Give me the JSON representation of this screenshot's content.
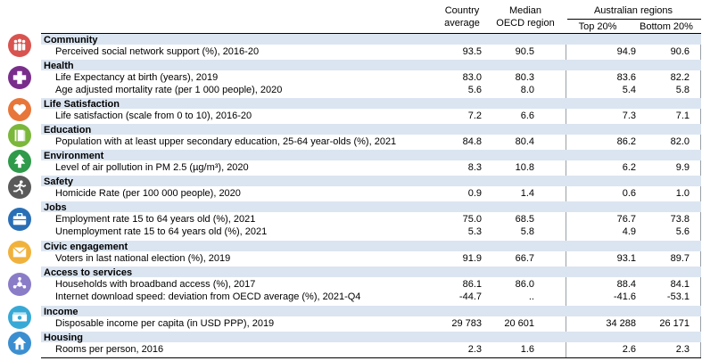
{
  "header": {
    "country_average": [
      "Country",
      "average"
    ],
    "median_oecd": [
      "Median",
      "OECD region"
    ],
    "regions_group": "Australian regions",
    "top20": "Top 20%",
    "bottom20": "Bottom 20%"
  },
  "sections": [
    {
      "title": "Community",
      "icon": "people-icon",
      "color": "#d9534f",
      "rows": [
        {
          "label": "Perceived social network support (%), 2016-20",
          "country": "93.5",
          "median": "90.5",
          "top": "94.9",
          "bottom": "90.6"
        }
      ]
    },
    {
      "title": "Health",
      "icon": "medical-cross-icon",
      "color": "#7a2e8c",
      "rows": [
        {
          "label": "Life Expectancy at birth (years), 2019",
          "country": "83.0",
          "median": "80.3",
          "top": "83.6",
          "bottom": "82.2"
        },
        {
          "label": "Age adjusted mortality rate (per 1 000 people), 2020",
          "country": "5.6",
          "median": "8.0",
          "top": "5.4",
          "bottom": "5.8"
        }
      ]
    },
    {
      "title": "Life Satisfaction",
      "icon": "heart-icon",
      "color": "#e8763a",
      "rows": [
        {
          "label": "Life satisfaction (scale from 0 to 10), 2016-20",
          "country": "7.2",
          "median": "6.6",
          "top": "7.3",
          "bottom": "7.1"
        }
      ]
    },
    {
      "title": "Education",
      "icon": "book-icon",
      "color": "#7bb73a",
      "rows": [
        {
          "label": "Population with at least upper secondary education, 25-64 year-olds  (%), 2021",
          "country": "84.8",
          "median": "80.4",
          "top": "86.2",
          "bottom": "82.0"
        }
      ]
    },
    {
      "title": "Environment",
      "icon": "tree-icon",
      "color": "#2e9a4a",
      "rows": [
        {
          "label": "Level of air pollution in PM 2.5 (µg/m³), 2020",
          "country": "8.3",
          "median": "10.8",
          "top": "6.2",
          "bottom": "9.9"
        }
      ]
    },
    {
      "title": "Safety",
      "icon": "running-person-icon",
      "color": "#5a5a5a",
      "rows": [
        {
          "label": "Homicide Rate (per 100 000 people), 2020",
          "country": "0.9",
          "median": "1.4",
          "top": "0.6",
          "bottom": "1.0"
        }
      ]
    },
    {
      "title": "Jobs",
      "icon": "briefcase-icon",
      "color": "#2a6fb5",
      "rows": [
        {
          "label": "Employment rate 15 to 64 years old (%), 2021",
          "country": "75.0",
          "median": "68.5",
          "top": "76.7",
          "bottom": "73.8"
        },
        {
          "label": "Unemployment rate 15 to 64 years old (%), 2021",
          "country": "5.3",
          "median": "5.8",
          "top": "4.9",
          "bottom": "5.6"
        }
      ]
    },
    {
      "title": "Civic engagement",
      "icon": "envelope-icon",
      "color": "#f0b23c",
      "rows": [
        {
          "label": "Voters in last national election (%), 2019",
          "country": "91.9",
          "median": "66.7",
          "top": "93.1",
          "bottom": "89.7"
        }
      ]
    },
    {
      "title": "Access to services",
      "icon": "network-icon",
      "color": "#8b7cc8",
      "rows": [
        {
          "label": "Households with broadband access (%), 2017",
          "country": "86.1",
          "median": "86.0",
          "top": "88.4",
          "bottom": "84.1"
        },
        {
          "label": "Internet download speed: deviation from OECD average (%), 2021-Q4",
          "country": "-44.7",
          "median": "..",
          "top": "-41.6",
          "bottom": "-53.1"
        }
      ]
    },
    {
      "title": "Income",
      "icon": "banknote-icon",
      "color": "#37a9d6",
      "rows": [
        {
          "label": "Disposable income per capita (in USD PPP), 2019",
          "country": "29 783",
          "median": "20 601",
          "top": "34 288",
          "bottom": "26 171"
        }
      ]
    },
    {
      "title": "Housing",
      "icon": "house-icon",
      "color": "#3b8fd0",
      "rows": [
        {
          "label": "Rooms per person, 2016",
          "country": "2.3",
          "median": "1.6",
          "top": "2.6",
          "bottom": "2.3"
        }
      ]
    }
  ]
}
